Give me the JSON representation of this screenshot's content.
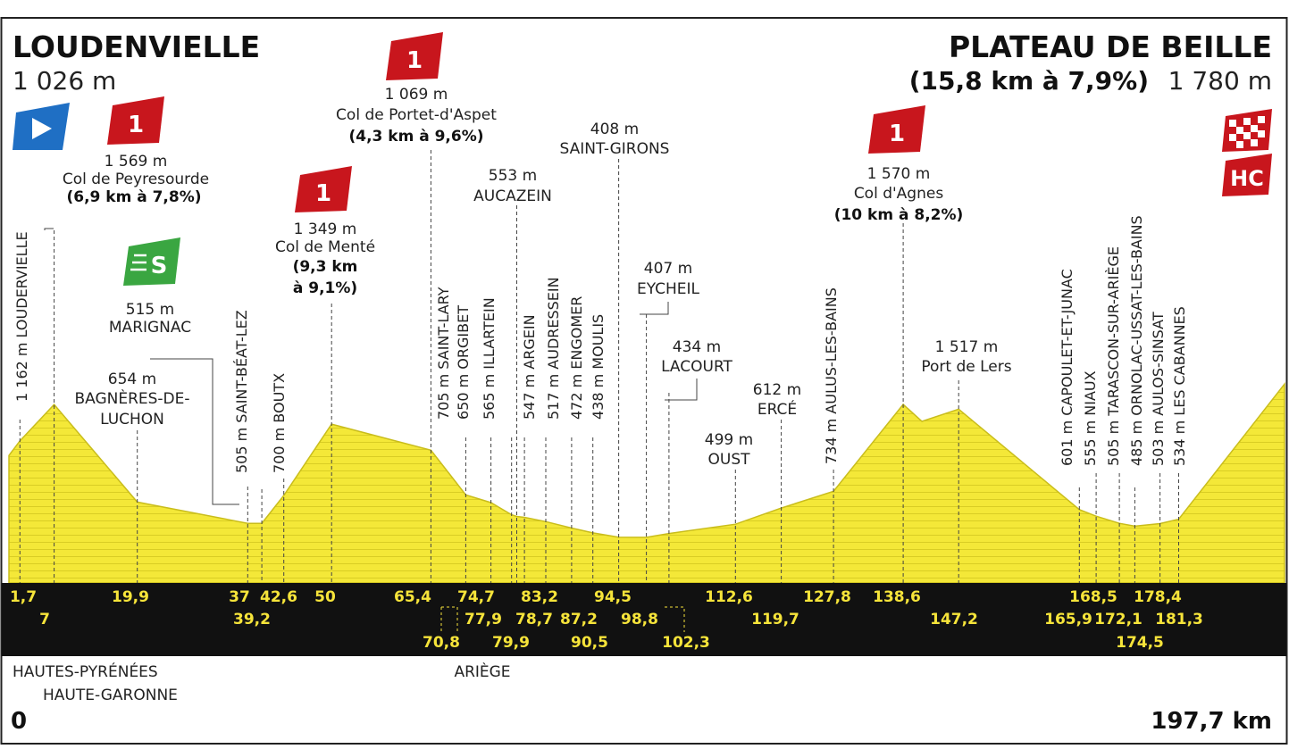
{
  "start": {
    "name": "LOUDENVIELLE",
    "altitude": "1 026 m"
  },
  "finish": {
    "name": "PLATEAU DE BEILLE",
    "climb": "(15,8 km à 7,9%)",
    "altitude": "1 780 m"
  },
  "total_distance_label": "197,7 km",
  "zero_label": "0",
  "colors": {
    "profile": "#f4e838",
    "profile_stripe": "#d9cd24",
    "band": "#111111",
    "km_text": "#f6e43a",
    "climb_badge": "#c8161d",
    "sprint_badge": "#3aa641",
    "start_badge": "#1f6fc4"
  },
  "regions": [
    "HAUTES-PYRÉNÉES",
    "HAUTE-GARONNE",
    "ARIÈGE"
  ],
  "badges": {
    "climb_category": "1",
    "sprint": "S",
    "finish_category": "HC"
  },
  "climbs": [
    {
      "name": "Col de Peyresourde",
      "altitude": "1 569 m",
      "detail": "(6,9 km à 7,8%)",
      "category": "1"
    },
    {
      "name": "Col de Menté",
      "altitude": "1 349 m",
      "detail1": "(9,3 km",
      "detail2": "à 9,1%)",
      "category": "1"
    },
    {
      "name": "Col de Portet-d'Aspet",
      "altitude": "1 069 m",
      "detail": "(4,3 km à 9,6%)",
      "category": "1"
    },
    {
      "name": "Col d'Agnes",
      "altitude": "1 570 m",
      "detail": "(10 km à 8,2%)",
      "category": "1"
    }
  ],
  "places": {
    "marignac": {
      "name": "MARIGNAC",
      "altitude": "515 m"
    },
    "luchon": {
      "name1": "BAGNÈRES-DE-",
      "name2": "LUCHON",
      "altitude": "654 m"
    },
    "aucazein": {
      "name": "AUCAZEIN",
      "altitude": "553 m"
    },
    "saint_girons": {
      "name": "SAINT-GIRONS",
      "altitude": "408 m"
    },
    "eycheil": {
      "name": "EYCHEIL",
      "altitude": "407 m"
    },
    "lacourt": {
      "name": "LACOURT",
      "altitude": "434 m"
    },
    "oust": {
      "name": "OUST",
      "altitude": "499 m"
    },
    "erce": {
      "name": "ERCÉ",
      "altitude": "612 m"
    },
    "port_de_lers": {
      "name": "Port de Lers",
      "altitude": "1 517 m"
    }
  },
  "vertical_labels": [
    "1 162 m LOUDERVIELLE",
    "505 m SAINT-BÉAT-LEZ",
    "700 m BOUTX",
    "705 m SAINT-LARY",
    "650 m ORGIBET",
    "565 m ILLARTEIN",
    "547 m ARGEIN",
    "517 m AUDRESSEIN",
    "472 m ENGOMER",
    "438 m MOULIS",
    "734 m AULUS-LES-BAINS",
    "601 m CAPOULET-ET-JUNAC",
    "555 m NIAUX",
    "505 m TARASCON-SUR-ARIÈGE",
    "485 m ORNOLAC-USSAT-LES-BAINS",
    "503 m AULOS-SINSAT",
    "534 m LES CABANNES"
  ],
  "km_row1": [
    "1,7",
    "19,9",
    "37",
    "42,6",
    "50",
    "65,4",
    "74,7",
    "83,2",
    "94,5",
    "112,6",
    "127,8",
    "138,6",
    "168,5",
    "178,4"
  ],
  "km_row2": [
    "7",
    "39,2",
    "77,9",
    "78,7",
    "87,2",
    "98,8",
    "119,7",
    "147,2",
    "165,9",
    "172,1",
    "181,3"
  ],
  "km_row3": [
    "70,8",
    "79,9",
    "90,5",
    "102,3",
    "174,5"
  ],
  "chart_data": {
    "type": "area",
    "title": "",
    "xlabel": "",
    "ylabel": "",
    "x_unit": "km",
    "y_unit": "m",
    "xlim": [
      0,
      197.7
    ],
    "x": [
      0,
      1.7,
      7,
      19.9,
      37,
      39.2,
      42.6,
      50,
      65.4,
      70.8,
      74.7,
      77.9,
      78.7,
      79.9,
      83.2,
      87.2,
      90.5,
      94.5,
      98.8,
      102.3,
      112.6,
      119.7,
      127.8,
      138.6,
      141.5,
      147.2,
      165.9,
      168.5,
      172.1,
      174.5,
      178.4,
      181.3,
      197.7
    ],
    "y": [
      1026,
      1162,
      1569,
      654,
      505,
      505,
      700,
      1349,
      1069,
      705,
      650,
      565,
      553,
      547,
      517,
      472,
      438,
      408,
      407,
      434,
      499,
      612,
      734,
      1570,
      1380,
      1517,
      601,
      555,
      505,
      485,
      503,
      534,
      1780
    ]
  }
}
